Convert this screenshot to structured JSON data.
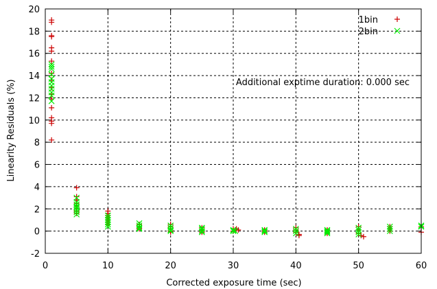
{
  "chart_data": {
    "type": "scatter",
    "title": "",
    "xlabel": "Corrected exposure time (sec)",
    "ylabel": "Linearity Residuals (%)",
    "xlim": [
      0,
      60
    ],
    "ylim": [
      -2,
      20
    ],
    "xticks": [
      "0",
      "10",
      "20",
      "30",
      "40",
      "50",
      "60"
    ],
    "yticks": [
      "-2",
      "0",
      "2",
      "4",
      "6",
      "8",
      "10",
      "12",
      "14",
      "16",
      "18",
      "20"
    ],
    "grid": true,
    "legend_position": "top-right",
    "annotation": "Additional exptime duration: 0.000 sec",
    "series": [
      {
        "name": "1bin",
        "marker": "+",
        "color": "#cc0000",
        "points": [
          [
            1,
            19.0
          ],
          [
            1,
            18.8
          ],
          [
            1,
            17.6
          ],
          [
            1,
            17.5
          ],
          [
            1,
            16.5
          ],
          [
            1,
            16.2
          ],
          [
            1,
            15.3
          ],
          [
            1,
            14.2
          ],
          [
            1,
            13.6
          ],
          [
            1,
            12.9
          ],
          [
            1,
            12.3
          ],
          [
            1,
            11.9
          ],
          [
            1,
            11.1
          ],
          [
            1,
            10.2
          ],
          [
            1,
            9.9
          ],
          [
            1,
            9.7
          ],
          [
            1,
            8.2
          ],
          [
            5,
            3.9
          ],
          [
            5,
            3.1
          ],
          [
            5,
            2.8
          ],
          [
            5,
            2.5
          ],
          [
            5,
            2.2
          ],
          [
            5,
            2.0
          ],
          [
            5,
            1.8
          ],
          [
            5,
            1.6
          ],
          [
            10,
            1.8
          ],
          [
            10,
            1.6
          ],
          [
            10,
            1.4
          ],
          [
            10,
            1.2
          ],
          [
            10,
            1.0
          ],
          [
            10,
            0.8
          ],
          [
            10,
            0.6
          ],
          [
            15,
            0.6
          ],
          [
            15,
            0.4
          ],
          [
            15,
            0.3
          ],
          [
            15,
            0.2
          ],
          [
            20,
            0.6
          ],
          [
            20,
            0.4
          ],
          [
            20,
            0.2
          ],
          [
            20,
            0.0
          ],
          [
            20,
            -0.1
          ],
          [
            25,
            0.3
          ],
          [
            25,
            0.1
          ],
          [
            25,
            0.0
          ],
          [
            25,
            -0.1
          ],
          [
            30,
            0.2
          ],
          [
            30.3,
            0.1
          ],
          [
            30.5,
            0.2
          ],
          [
            30.8,
            0.1
          ],
          [
            30,
            0.0
          ],
          [
            35,
            0.1
          ],
          [
            35,
            0.0
          ],
          [
            35,
            -0.1
          ],
          [
            40,
            0.3
          ],
          [
            40,
            0.1
          ],
          [
            40,
            -0.1
          ],
          [
            40.5,
            -0.3
          ],
          [
            40.5,
            -0.4
          ],
          [
            45,
            0.1
          ],
          [
            45,
            0.0
          ],
          [
            45,
            -0.2
          ],
          [
            50,
            0.4
          ],
          [
            50,
            0.1
          ],
          [
            50,
            -0.2
          ],
          [
            50.4,
            -0.4
          ],
          [
            50.8,
            -0.5
          ],
          [
            55,
            0.4
          ],
          [
            55,
            0.2
          ],
          [
            55,
            0.0
          ],
          [
            60,
            0.4
          ],
          [
            60,
            -0.1
          ]
        ]
      },
      {
        "name": "2bin",
        "marker": "x",
        "color": "#00ee00",
        "points": [
          [
            1,
            15.0
          ],
          [
            1,
            14.8
          ],
          [
            1,
            14.6
          ],
          [
            1,
            14.1
          ],
          [
            1,
            13.7
          ],
          [
            1,
            13.4
          ],
          [
            1,
            13.1
          ],
          [
            1,
            12.8
          ],
          [
            1,
            12.5
          ],
          [
            1,
            12.2
          ],
          [
            1,
            11.7
          ],
          [
            5,
            3.0
          ],
          [
            5,
            2.6
          ],
          [
            5,
            2.4
          ],
          [
            5,
            2.2
          ],
          [
            5,
            2.1
          ],
          [
            5,
            1.9
          ],
          [
            5,
            1.7
          ],
          [
            5,
            1.5
          ],
          [
            10,
            1.4
          ],
          [
            10,
            1.2
          ],
          [
            10,
            1.0
          ],
          [
            10,
            0.8
          ],
          [
            10,
            0.6
          ],
          [
            10,
            0.4
          ],
          [
            15,
            0.7
          ],
          [
            15,
            0.5
          ],
          [
            15,
            0.3
          ],
          [
            15,
            0.2
          ],
          [
            20,
            0.5
          ],
          [
            20,
            0.3
          ],
          [
            20,
            0.1
          ],
          [
            20,
            0.0
          ],
          [
            25,
            0.3
          ],
          [
            25,
            0.2
          ],
          [
            25,
            0.0
          ],
          [
            25,
            -0.1
          ],
          [
            30,
            0.1
          ],
          [
            30,
            0.0
          ],
          [
            30.3,
            0.0
          ],
          [
            35,
            0.1
          ],
          [
            35,
            0.0
          ],
          [
            35,
            -0.1
          ],
          [
            40,
            0.2
          ],
          [
            40,
            0.0
          ],
          [
            40,
            -0.2
          ],
          [
            45,
            0.1
          ],
          [
            45,
            0.0
          ],
          [
            45,
            -0.1
          ],
          [
            45,
            -0.2
          ],
          [
            50,
            0.3
          ],
          [
            50,
            0.1
          ],
          [
            50,
            -0.1
          ],
          [
            50,
            -0.3
          ],
          [
            55,
            0.4
          ],
          [
            55,
            0.2
          ],
          [
            55,
            0.0
          ],
          [
            60,
            0.5
          ],
          [
            60,
            0.4
          ]
        ]
      }
    ]
  }
}
